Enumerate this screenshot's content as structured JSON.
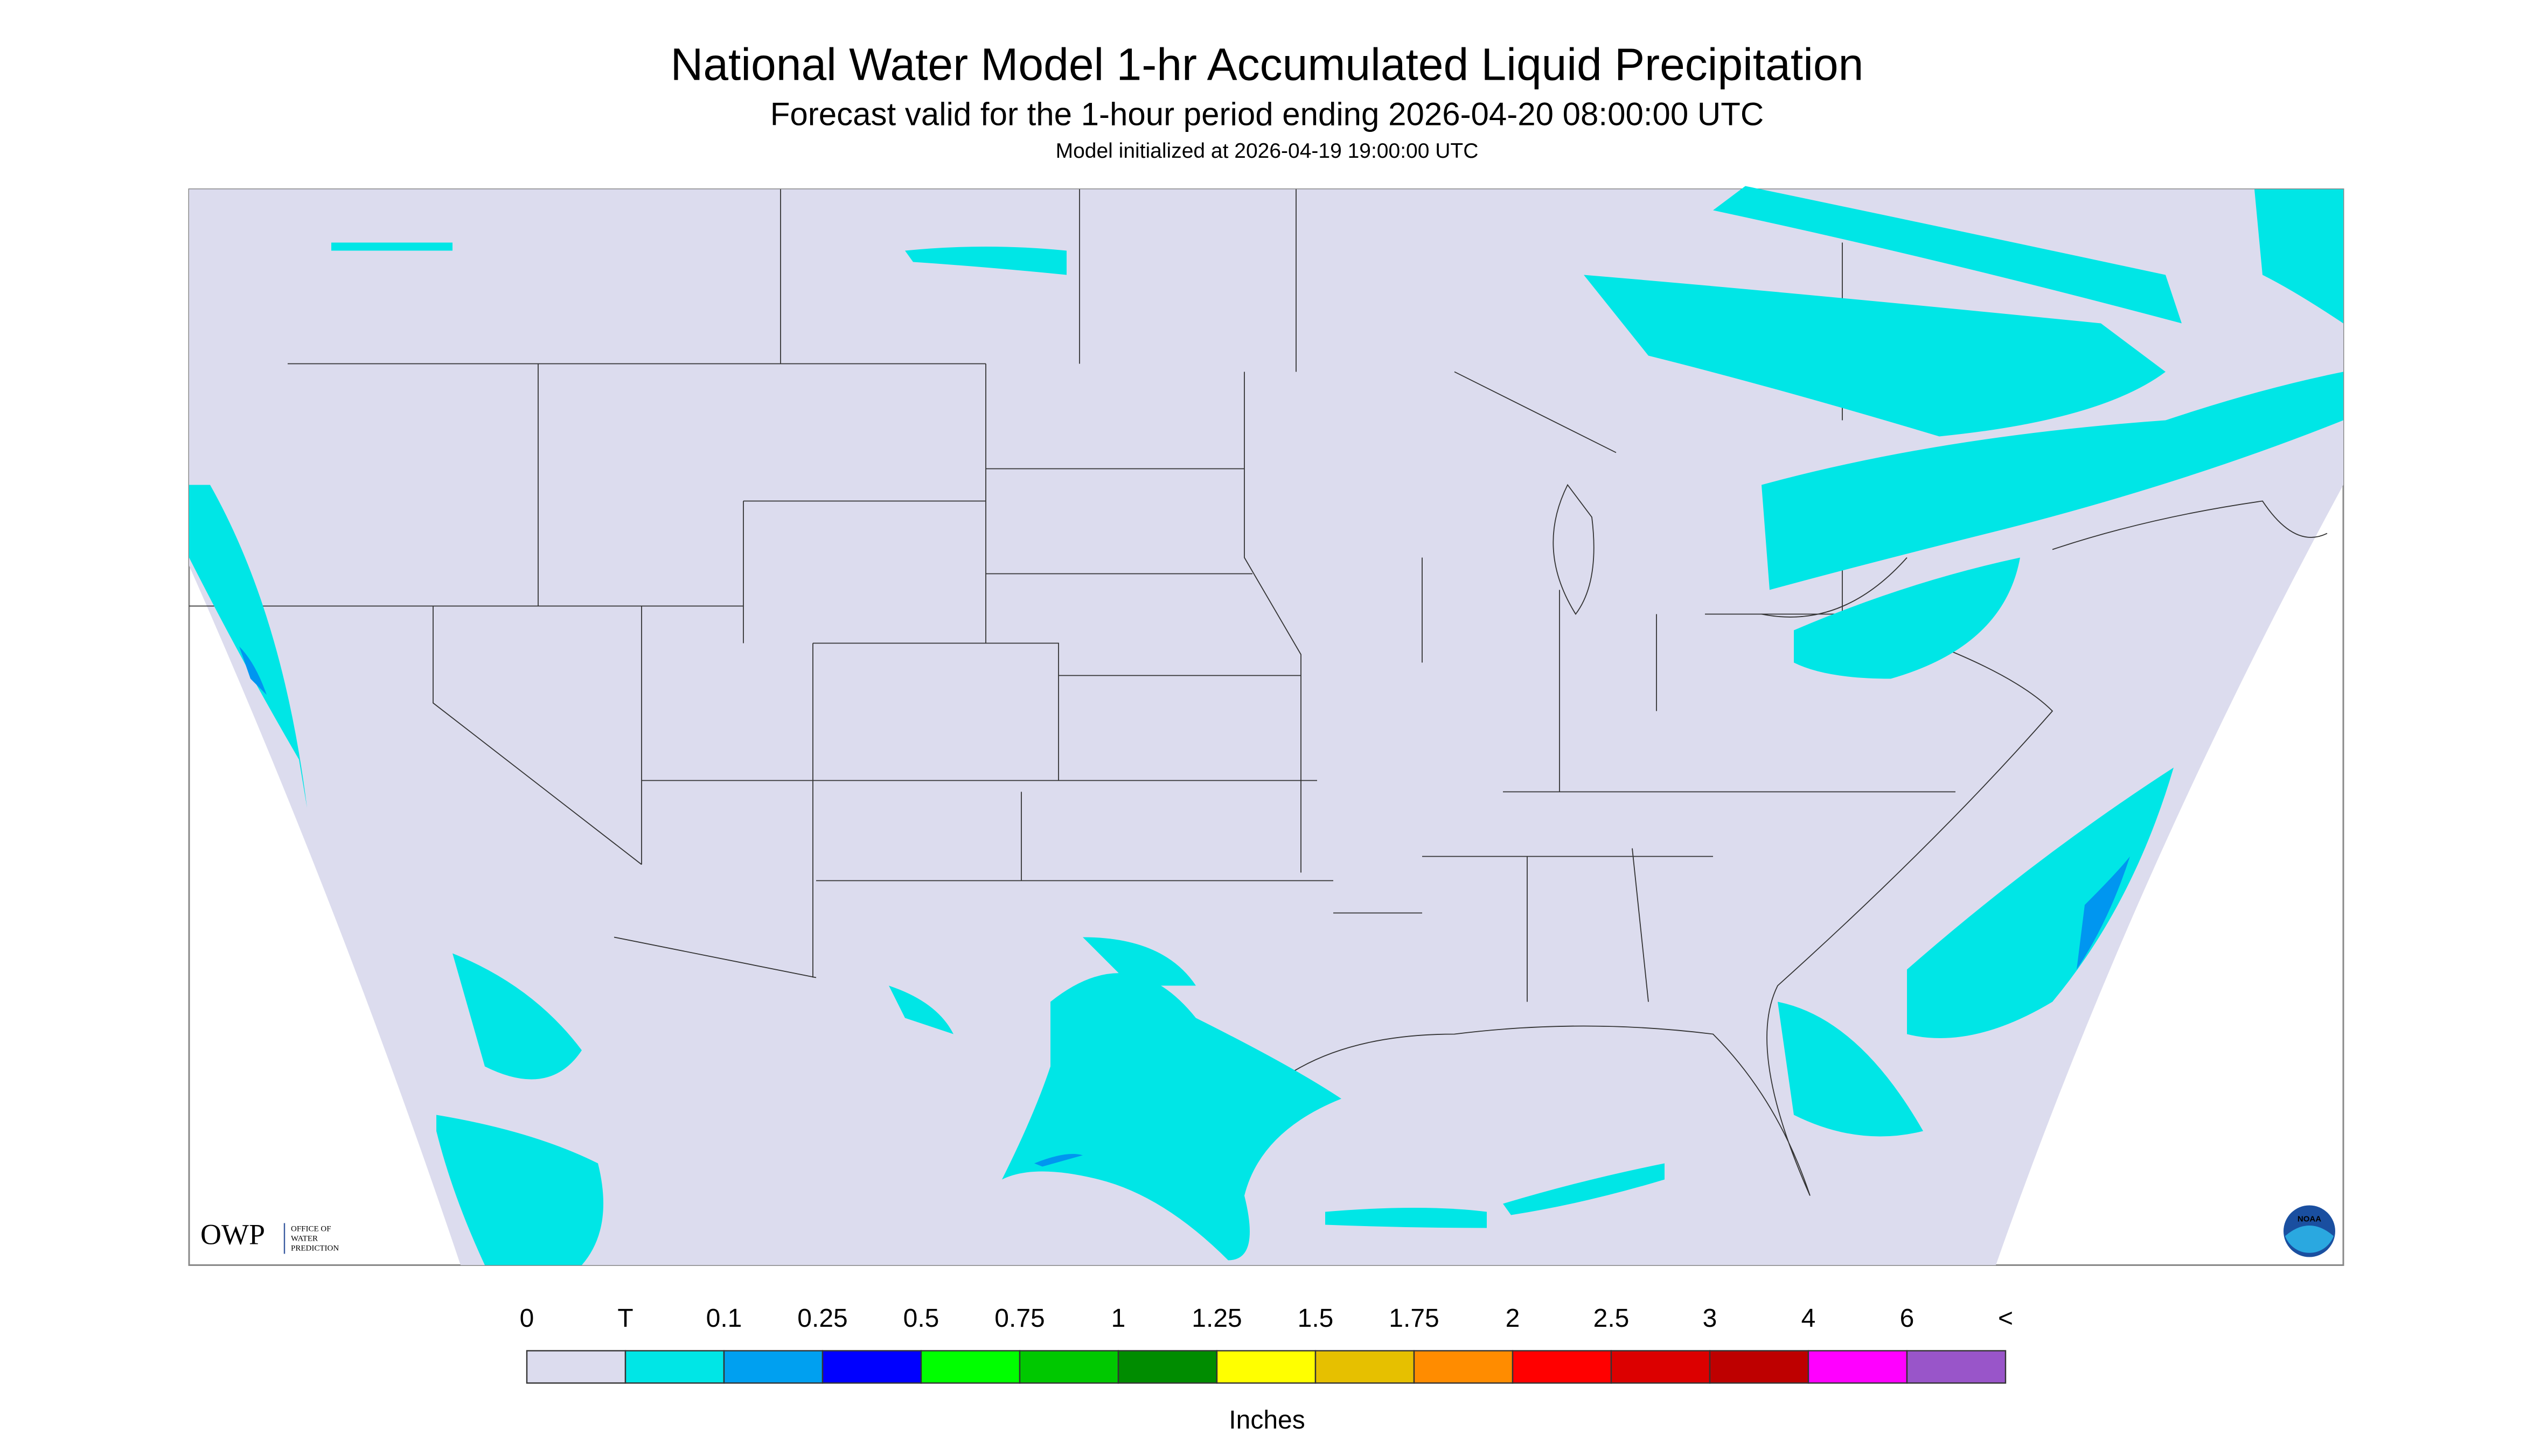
{
  "header": {
    "title": "National Water Model 1-hr Accumulated Liquid Precipitation",
    "subtitle": "Forecast valid for the 1-hour period ending 2026-04-20 08:00:00 UTC",
    "init": "Model initialized at 2026-04-19 19:00:00 UTC"
  },
  "logos": {
    "owp": "OWP",
    "owp_name": [
      "OFFICE OF",
      "WATER",
      "PREDICTION"
    ],
    "noaa": "NOAA"
  },
  "legend": {
    "labels": [
      "0",
      "T",
      "0.1",
      "0.25",
      "0.5",
      "0.75",
      "1",
      "1.25",
      "1.5",
      "1.75",
      "2",
      "2.5",
      "3",
      "4",
      "6",
      "<"
    ],
    "colors": [
      "#dcdcee",
      "#00e6e6",
      "#00a0f0",
      "#0000ff",
      "#00ff00",
      "#00c800",
      "#008c00",
      "#ffff00",
      "#e6c000",
      "#ff8c00",
      "#ff0000",
      "#dc0000",
      "#be0000",
      "#ff00ff",
      "#9955c9"
    ],
    "unit": "Inches"
  }
}
